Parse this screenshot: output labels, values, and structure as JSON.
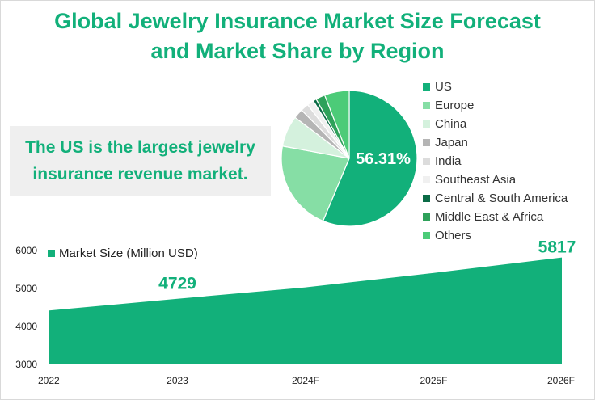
{
  "title_line1": "Global Jewelry Insurance Market Size Forecast",
  "title_line2": "and Market Share by Region",
  "callout_line1": "The US is the largest jewelry",
  "callout_line2": "insurance revenue market.",
  "chart_data": [
    {
      "type": "pie",
      "labels": [
        "US",
        "Europe",
        "China",
        "Japan",
        "India",
        "Southeast Asia",
        "Central & South America",
        "Middle East & Africa",
        "Others"
      ],
      "values": [
        56.31,
        21.6,
        7.4,
        2.3,
        1.9,
        1.6,
        0.8,
        2.2,
        5.89
      ],
      "colors": [
        "#12b07a",
        "#86dea5",
        "#d4f1dd",
        "#b5b5b5",
        "#dcdcdc",
        "#f0f0f0",
        "#0b6b46",
        "#2ea15a",
        "#4ccb78"
      ],
      "data_label": "56.31%",
      "legend": "right"
    },
    {
      "type": "area",
      "categories": [
        "2022",
        "2023",
        "2024F",
        "2025F",
        "2026F"
      ],
      "values": [
        4420,
        4729,
        5030,
        5410,
        5817
      ],
      "series_name": "Market Size (Million USD)",
      "ylim": [
        3000,
        6000
      ],
      "yticks": [
        "3000",
        "4000",
        "5000",
        "6000"
      ],
      "labeled_points": [
        {
          "label": "4729"
        },
        {
          "label": "5817"
        }
      ],
      "color": "#12b07a",
      "legend": "top-left"
    }
  ]
}
